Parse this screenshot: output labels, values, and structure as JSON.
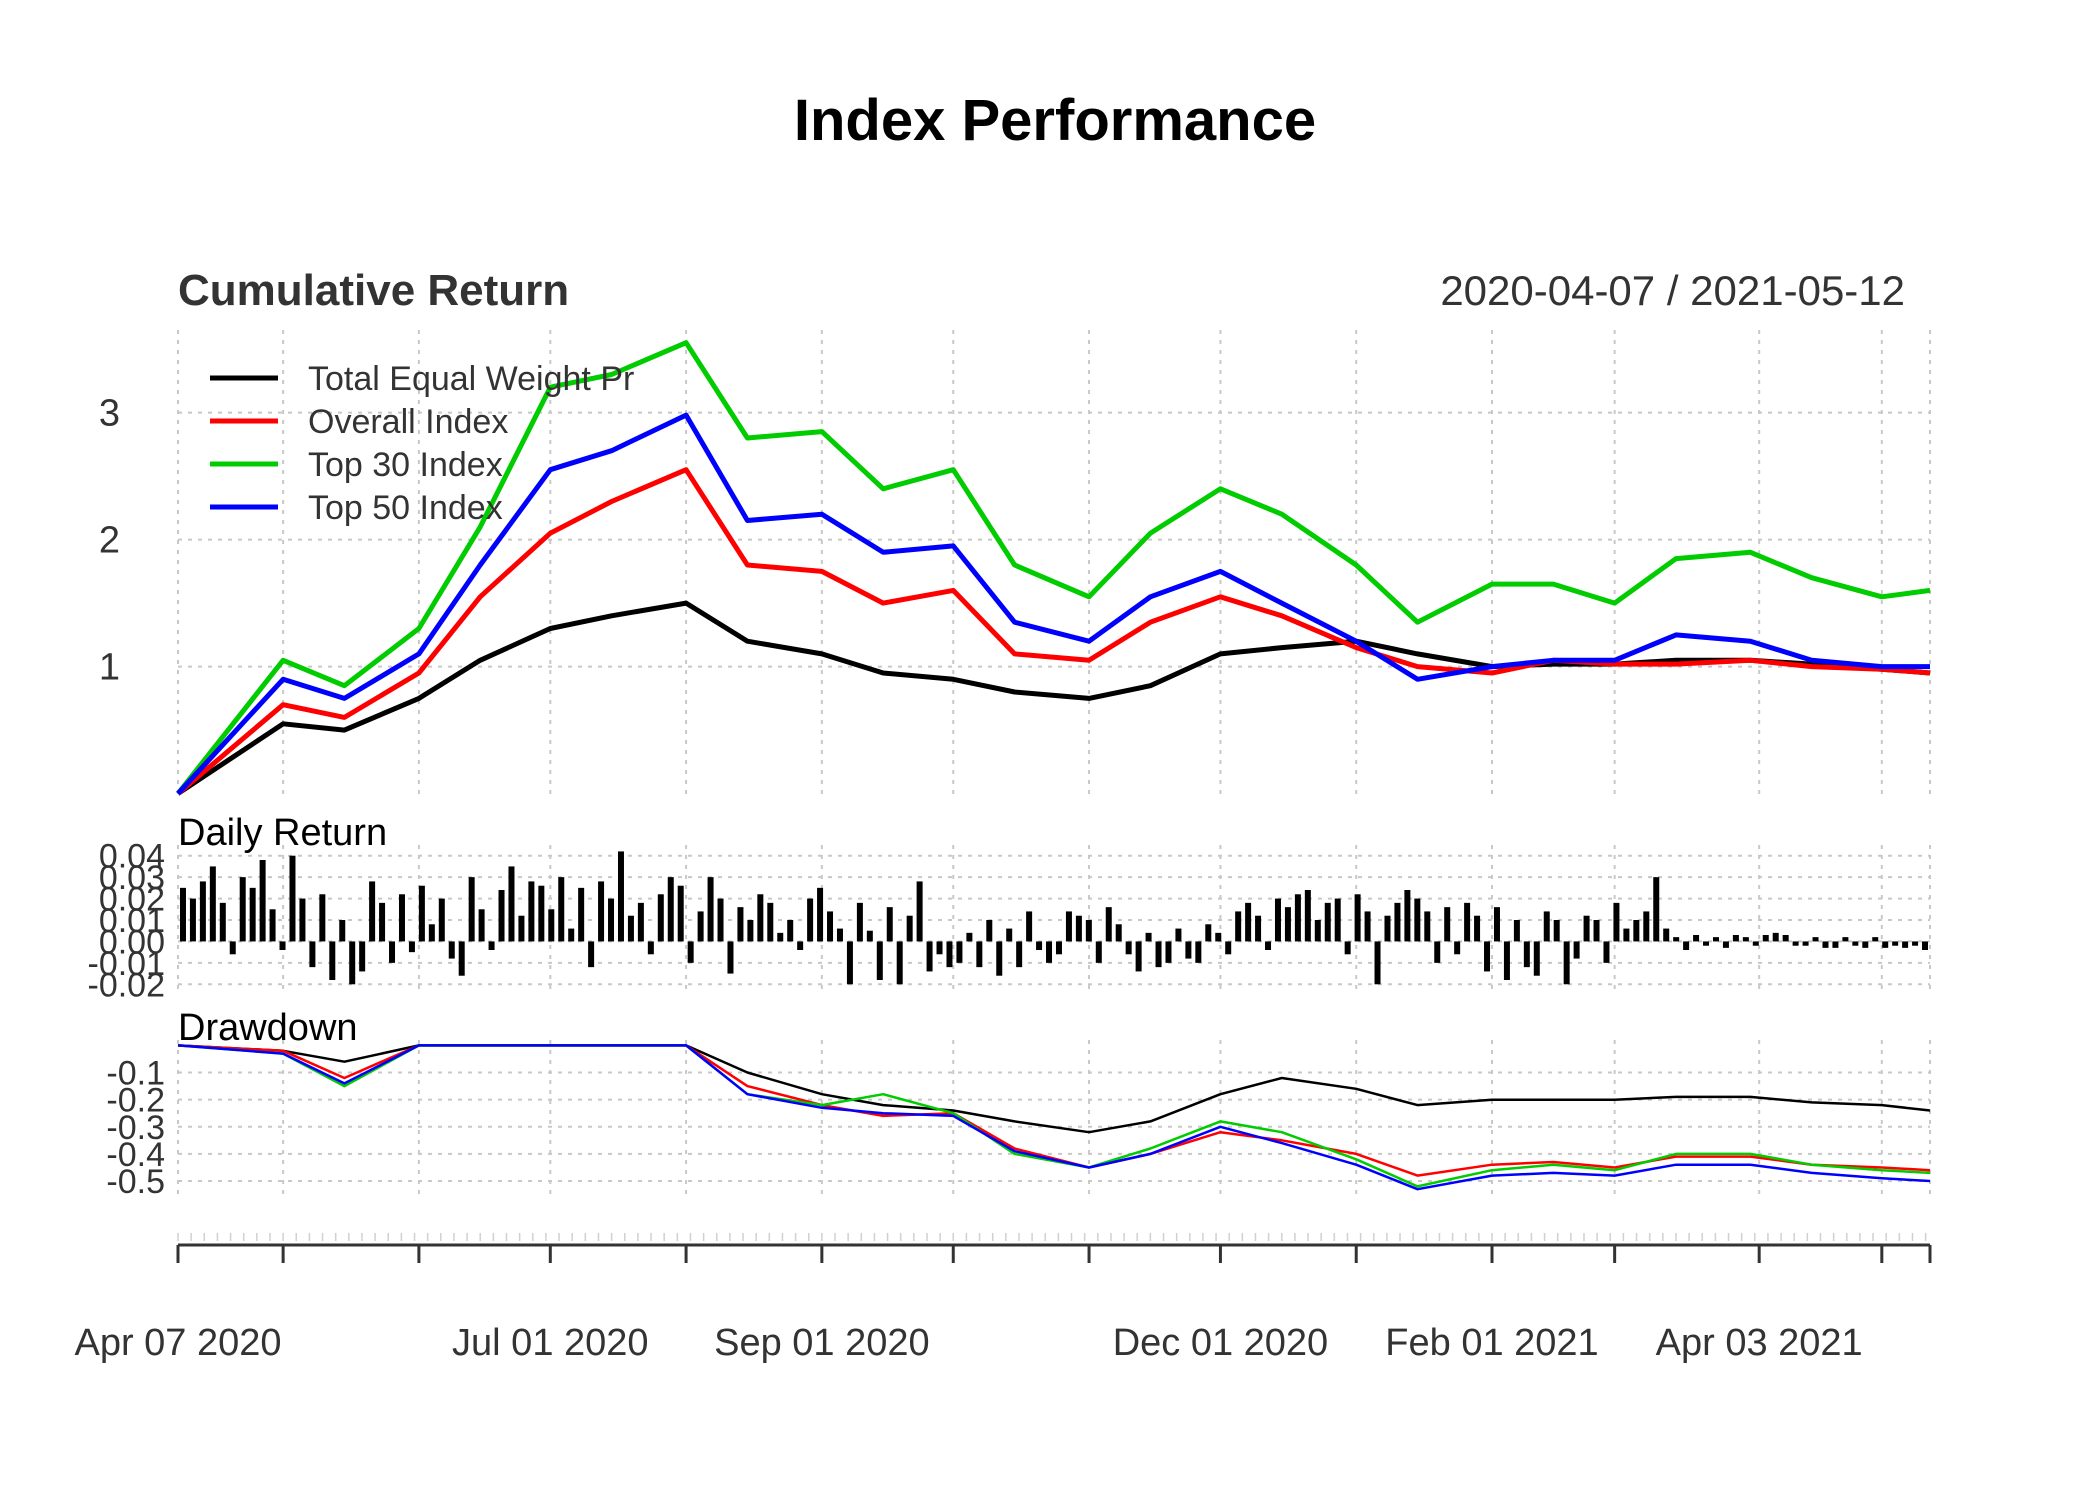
{
  "title": "Index Performance",
  "panels": {
    "cumulative_title": "Cumulative Return",
    "date_range": "2020-04-07 / 2021-05-12",
    "daily_title": "Daily Return",
    "drawdown_title": "Drawdown"
  },
  "colors": {
    "total": "#000000",
    "overall": "#ff0000",
    "top30": "#00cc00",
    "top50": "#0000ff"
  },
  "chart_data": {
    "type": "line",
    "x_ticks": [
      "Apr 07 2020",
      "Jul 01 2020",
      "Sep 01 2020",
      "Dec 01 2020",
      "Feb 01 2021",
      "Apr 03 2021"
    ],
    "cumulative": {
      "ylim": [
        -0.05,
        3.65
      ],
      "y_ticks": [
        "1",
        "2",
        "3"
      ],
      "grid": true,
      "legend_position": "top-left",
      "dates": [
        "2020-04-07",
        "2020-05-01",
        "2020-05-15",
        "2020-06-01",
        "2020-06-15",
        "2020-07-01",
        "2020-07-15",
        "2020-08-01",
        "2020-08-15",
        "2020-09-01",
        "2020-09-15",
        "2020-10-01",
        "2020-10-15",
        "2020-11-01",
        "2020-11-15",
        "2020-12-01",
        "2020-12-15",
        "2021-01-01",
        "2021-01-15",
        "2021-02-01",
        "2021-02-15",
        "2021-03-01",
        "2021-03-15",
        "2021-04-01",
        "2021-04-15",
        "2021-05-01",
        "2021-05-12"
      ],
      "series": [
        {
          "name": "Total Equal Weight Pr",
          "color_key": "total",
          "values": [
            0.0,
            0.55,
            0.5,
            0.75,
            1.05,
            1.3,
            1.4,
            1.5,
            1.2,
            1.1,
            0.95,
            0.9,
            0.8,
            0.75,
            0.85,
            1.1,
            1.15,
            1.2,
            1.1,
            1.0,
            1.02,
            1.02,
            1.05,
            1.05,
            1.02,
            0.98,
            0.95
          ]
        },
        {
          "name": "Overall Index",
          "color_key": "overall",
          "values": [
            0.0,
            0.7,
            0.6,
            0.95,
            1.55,
            2.05,
            2.3,
            2.55,
            1.8,
            1.75,
            1.5,
            1.6,
            1.1,
            1.05,
            1.35,
            1.55,
            1.4,
            1.15,
            1.0,
            0.95,
            1.05,
            1.02,
            1.02,
            1.05,
            1.0,
            0.98,
            0.95
          ]
        },
        {
          "name": "Top 30 Index",
          "color_key": "top30",
          "values": [
            0.0,
            1.05,
            0.85,
            1.3,
            2.1,
            3.2,
            3.3,
            3.55,
            2.8,
            2.85,
            2.4,
            2.55,
            1.8,
            1.55,
            2.05,
            2.4,
            2.2,
            1.8,
            1.35,
            1.65,
            1.65,
            1.5,
            1.85,
            1.9,
            1.7,
            1.55,
            1.6
          ]
        },
        {
          "name": "Top 50 Index",
          "color_key": "top50",
          "values": [
            0.0,
            0.9,
            0.75,
            1.1,
            1.8,
            2.55,
            2.7,
            2.98,
            2.15,
            2.2,
            1.9,
            1.95,
            1.35,
            1.2,
            1.55,
            1.75,
            1.5,
            1.2,
            0.9,
            1.0,
            1.05,
            1.05,
            1.25,
            1.2,
            1.05,
            1.0,
            1.0
          ]
        }
      ]
    },
    "daily_return": {
      "ylim": [
        -0.025,
        0.045
      ],
      "y_ticks": [
        "0.04",
        "0.03",
        "0.02",
        "0.01",
        "0.00",
        "-0.01",
        "-0.02"
      ],
      "series_name": "Total Equal Weight Pr",
      "values": [
        0.025,
        0.02,
        0.028,
        0.035,
        0.018,
        -0.006,
        0.03,
        0.025,
        0.038,
        0.015,
        -0.004,
        0.04,
        0.02,
        -0.012,
        0.022,
        -0.018,
        0.01,
        -0.02,
        -0.014,
        0.028,
        0.018,
        -0.01,
        0.022,
        -0.005,
        0.026,
        0.008,
        0.02,
        -0.008,
        -0.016,
        0.03,
        0.015,
        -0.004,
        0.024,
        0.035,
        0.012,
        0.028,
        0.026,
        0.015,
        0.03,
        0.006,
        0.025,
        -0.012,
        0.028,
        0.02,
        0.042,
        0.012,
        0.018,
        -0.006,
        0.022,
        0.03,
        0.026,
        -0.01,
        0.014,
        0.03,
        0.02,
        -0.015,
        0.016,
        0.01,
        0.022,
        0.018,
        0.004,
        0.01,
        -0.004,
        0.02,
        0.025,
        0.014,
        0.006,
        -0.02,
        0.018,
        0.005,
        -0.018,
        0.016,
        -0.02,
        0.012,
        0.028,
        -0.014,
        -0.006,
        -0.012,
        -0.01,
        0.004,
        -0.012,
        0.01,
        -0.016,
        0.006,
        -0.012,
        0.014,
        -0.004,
        -0.01,
        -0.006,
        0.014,
        0.012,
        0.01,
        -0.01,
        0.016,
        0.008,
        -0.006,
        -0.014,
        0.004,
        -0.012,
        -0.01,
        0.006,
        -0.008,
        -0.01,
        0.008,
        0.004,
        -0.006,
        0.014,
        0.018,
        0.012,
        -0.004,
        0.02,
        0.016,
        0.022,
        0.024,
        0.01,
        0.018,
        0.02,
        -0.006,
        0.022,
        0.014,
        -0.02,
        0.012,
        0.018,
        0.024,
        0.02,
        0.014,
        -0.01,
        0.016,
        -0.006,
        0.018,
        0.012,
        -0.014,
        0.016,
        -0.018,
        0.01,
        -0.012,
        -0.016,
        0.014,
        0.01,
        -0.02,
        -0.008,
        0.012,
        0.01,
        -0.01,
        0.018,
        0.006,
        0.01,
        0.014,
        0.03,
        0.006,
        0.002,
        -0.004,
        0.003,
        -0.002,
        0.002,
        -0.003,
        0.003,
        0.002,
        -0.002,
        0.003,
        0.004,
        0.003,
        -0.002,
        -0.002,
        0.002,
        -0.003,
        -0.003,
        0.002,
        -0.002,
        -0.003,
        0.002,
        -0.003,
        -0.002,
        -0.003,
        -0.002,
        -0.004
      ]
    },
    "drawdown": {
      "ylim": [
        -0.57,
        0.02
      ],
      "y_ticks": [
        "-0.1",
        "-0.2",
        "-0.3",
        "-0.4",
        "-0.5"
      ],
      "series": [
        {
          "name": "Total Equal Weight Pr",
          "color_key": "total",
          "values": [
            0.0,
            -0.02,
            -0.06,
            0.0,
            0.0,
            0.0,
            0.0,
            0.0,
            -0.1,
            -0.18,
            -0.22,
            -0.24,
            -0.28,
            -0.32,
            -0.28,
            -0.18,
            -0.12,
            -0.16,
            -0.22,
            -0.2,
            -0.2,
            -0.2,
            -0.19,
            -0.19,
            -0.21,
            -0.22,
            -0.24
          ]
        },
        {
          "name": "Overall Index",
          "color_key": "overall",
          "values": [
            0.0,
            -0.02,
            -0.12,
            0.0,
            0.0,
            0.0,
            0.0,
            0.0,
            -0.15,
            -0.22,
            -0.26,
            -0.25,
            -0.38,
            -0.45,
            -0.4,
            -0.32,
            -0.35,
            -0.4,
            -0.48,
            -0.44,
            -0.43,
            -0.45,
            -0.41,
            -0.41,
            -0.44,
            -0.45,
            -0.46
          ]
        },
        {
          "name": "Top 30 Index",
          "color_key": "top30",
          "values": [
            0.0,
            -0.03,
            -0.15,
            0.0,
            0.0,
            0.0,
            0.0,
            0.0,
            -0.18,
            -0.22,
            -0.18,
            -0.25,
            -0.4,
            -0.45,
            -0.38,
            -0.28,
            -0.32,
            -0.42,
            -0.52,
            -0.46,
            -0.44,
            -0.46,
            -0.4,
            -0.4,
            -0.44,
            -0.46,
            -0.47
          ]
        },
        {
          "name": "Top 50 Index",
          "color_key": "top50",
          "values": [
            0.0,
            -0.03,
            -0.14,
            0.0,
            0.0,
            0.0,
            0.0,
            0.0,
            -0.18,
            -0.23,
            -0.25,
            -0.26,
            -0.39,
            -0.45,
            -0.4,
            -0.3,
            -0.36,
            -0.44,
            -0.53,
            -0.48,
            -0.47,
            -0.48,
            -0.44,
            -0.44,
            -0.47,
            -0.49,
            -0.5
          ]
        }
      ]
    }
  }
}
